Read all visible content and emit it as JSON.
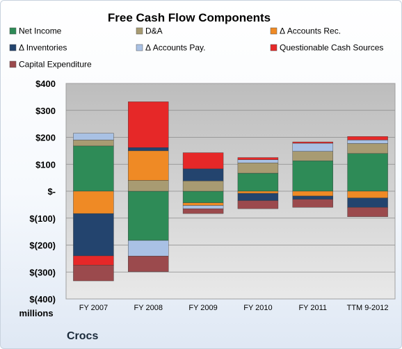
{
  "chart_data": {
    "type": "bar",
    "stacked": true,
    "title": "Free Cash Flow Components",
    "categories": [
      "FY 2007",
      "FY 2008",
      "FY 2009",
      "FY 2010",
      "FY 2011",
      "TTM 9-2012"
    ],
    "y_ticks": [
      "$400",
      "$300",
      "$200",
      "$100",
      "$-",
      "$(100)",
      "$(200)",
      "$(300)",
      "$(400)"
    ],
    "ylim": [
      -400,
      400
    ],
    "unit_label": "millions",
    "grid": true,
    "legend_position": "top",
    "series": [
      {
        "name": "Net Income",
        "color": "#2e8b57",
        "values": [
          168,
          -183,
          -43,
          67,
          113,
          140
        ]
      },
      {
        "name": "D&A",
        "color": "#a89b72",
        "values": [
          22,
          40,
          38,
          38,
          35,
          37
        ]
      },
      {
        "name": "Δ Accounts Rec.",
        "color": "#ef8a25",
        "values": [
          -83,
          110,
          -10,
          -8,
          -18,
          -25
        ]
      },
      {
        "name": "Δ Inventories",
        "color": "#23446e",
        "values": [
          -157,
          12,
          45,
          -27,
          -12,
          -35
        ]
      },
      {
        "name": "Δ Accounts Pay.",
        "color": "#a9c1e4",
        "values": [
          25,
          -58,
          -12,
          12,
          30,
          13
        ]
      },
      {
        "name": "Questionable Cash Sources",
        "color": "#e62828",
        "values": [
          -35,
          170,
          60,
          8,
          5,
          13
        ]
      },
      {
        "name": "Capital Expenditure",
        "color": "#9b4a4d",
        "values": [
          -58,
          -58,
          -18,
          -30,
          -30,
          -35
        ]
      }
    ]
  },
  "unit": "millions",
  "company": "Crocs"
}
